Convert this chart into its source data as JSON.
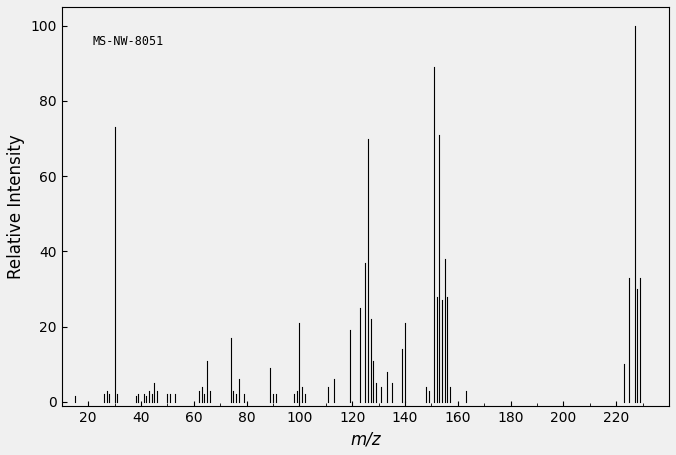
{
  "title_annotation": "MS-NW-8051",
  "xlabel": "m/z",
  "ylabel": "Relative Intensity",
  "xlim": [
    10,
    240
  ],
  "ylim": [
    -1,
    105
  ],
  "xticks": [
    20,
    40,
    60,
    80,
    100,
    120,
    140,
    160,
    180,
    200,
    220
  ],
  "yticks": [
    0,
    20,
    40,
    60,
    80,
    100
  ],
  "peaks": [
    [
      15,
      1.5
    ],
    [
      26,
      2
    ],
    [
      27,
      3
    ],
    [
      28,
      2
    ],
    [
      30,
      73
    ],
    [
      31,
      2
    ],
    [
      38,
      1.5
    ],
    [
      39,
      2
    ],
    [
      41,
      2
    ],
    [
      42,
      1.5
    ],
    [
      43,
      3
    ],
    [
      44,
      2
    ],
    [
      45,
      5
    ],
    [
      46,
      3
    ],
    [
      50,
      2
    ],
    [
      51,
      2
    ],
    [
      53,
      2
    ],
    [
      62,
      3
    ],
    [
      63,
      4
    ],
    [
      64,
      2
    ],
    [
      65,
      11
    ],
    [
      66,
      3
    ],
    [
      74,
      17
    ],
    [
      75,
      3
    ],
    [
      76,
      2
    ],
    [
      77,
      6
    ],
    [
      79,
      2
    ],
    [
      89,
      9
    ],
    [
      90,
      2
    ],
    [
      91,
      2
    ],
    [
      98,
      2
    ],
    [
      99,
      3
    ],
    [
      100,
      21
    ],
    [
      101,
      4
    ],
    [
      102,
      2
    ],
    [
      111,
      4
    ],
    [
      113,
      6
    ],
    [
      119,
      19
    ],
    [
      123,
      25
    ],
    [
      125,
      37
    ],
    [
      126,
      70
    ],
    [
      127,
      22
    ],
    [
      128,
      11
    ],
    [
      129,
      5
    ],
    [
      131,
      4
    ],
    [
      133,
      8
    ],
    [
      135,
      5
    ],
    [
      139,
      14
    ],
    [
      140,
      21
    ],
    [
      148,
      4
    ],
    [
      149,
      3
    ],
    [
      151,
      89
    ],
    [
      152,
      28
    ],
    [
      153,
      71
    ],
    [
      154,
      27
    ],
    [
      155,
      38
    ],
    [
      156,
      28
    ],
    [
      157,
      4
    ],
    [
      163,
      3
    ],
    [
      223,
      10
    ],
    [
      225,
      33
    ],
    [
      227,
      100
    ],
    [
      228,
      30
    ],
    [
      229,
      33
    ]
  ],
  "line_color": "#000000",
  "bg_color": "#f0f0f0",
  "annotation_fontsize": 8.5,
  "label_fontsize": 12,
  "tick_fontsize": 10
}
